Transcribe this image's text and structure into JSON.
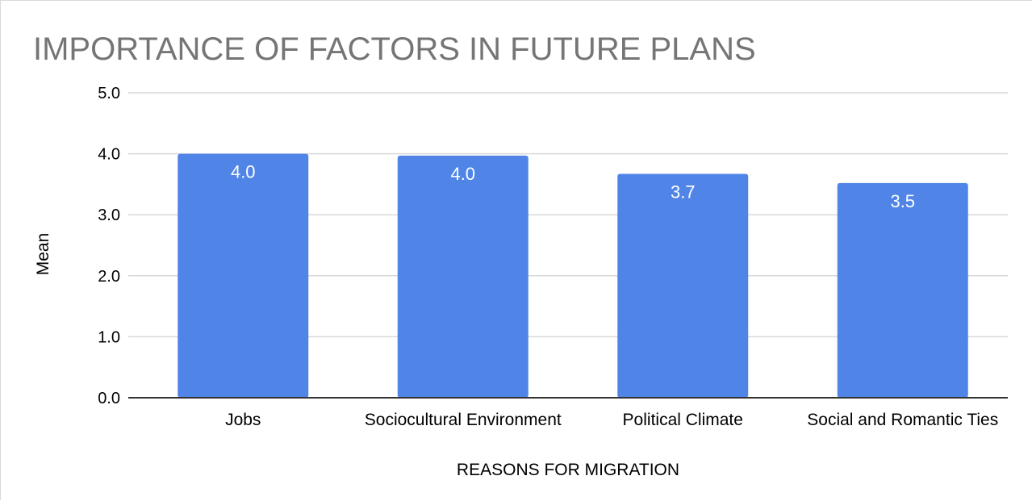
{
  "chart_data": {
    "type": "bar",
    "title": "IMPORTANCE OF FACTORS IN FUTURE PLANS",
    "xlabel": "REASONS FOR MIGRATION",
    "ylabel": "Mean",
    "categories": [
      "Jobs",
      "Sociocultural Environment",
      "Political Climate",
      "Social and Romantic Ties"
    ],
    "series": [
      {
        "values": [
          4.0,
          3.97,
          3.67,
          3.52
        ],
        "labels": [
          "4.0",
          "4.0",
          "3.7",
          "3.5"
        ],
        "color": "#5085e7"
      }
    ],
    "ylim": [
      0,
      5
    ],
    "yticks": [
      "0.0",
      "1.0",
      "2.0",
      "3.0",
      "4.0",
      "5.0"
    ],
    "grid": true,
    "legend": "none"
  },
  "colors": {
    "gridline": "#d9d9d9",
    "baseline": "#333333",
    "title": "#757575"
  }
}
